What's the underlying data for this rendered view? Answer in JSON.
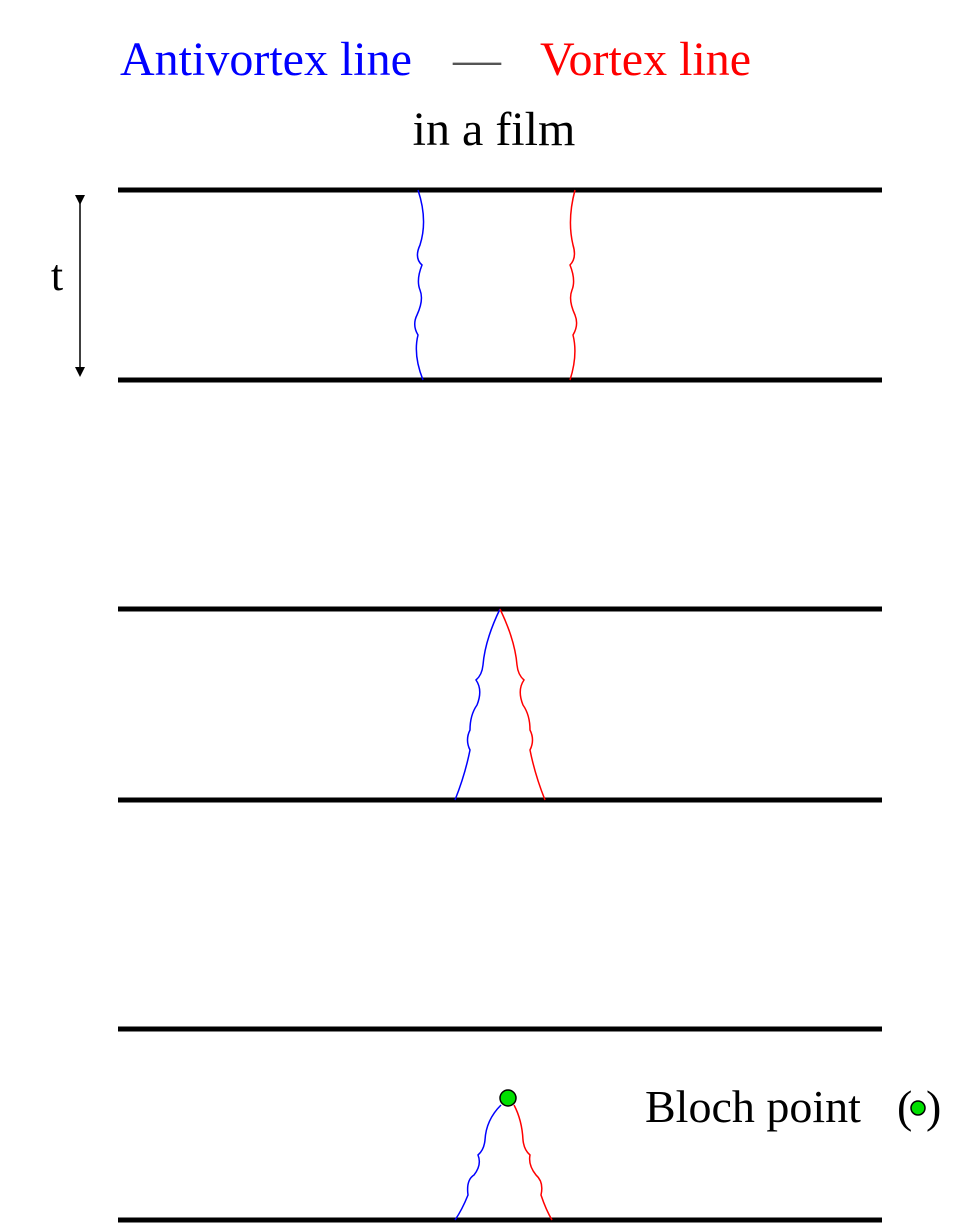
{
  "header": {
    "antivortex": "Antivortex line",
    "separator": "—",
    "vortex": "Vortex line",
    "subtitle": "in a film"
  },
  "thickness_label": "t",
  "bloch": {
    "label": "Bloch point",
    "open": "(",
    "close": ")"
  }
}
